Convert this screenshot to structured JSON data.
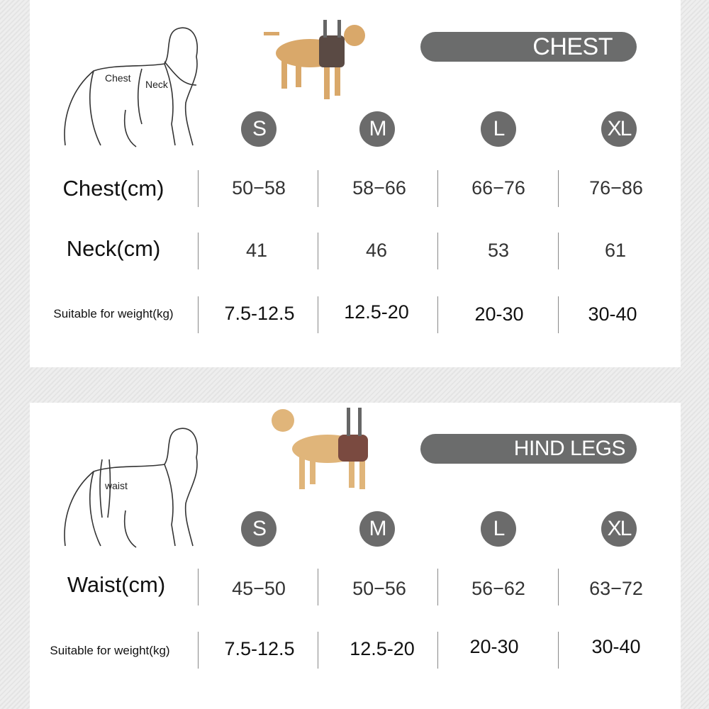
{
  "sizes": [
    "S",
    "M",
    "L",
    "XL"
  ],
  "chest_panel": {
    "title": "CHEST",
    "sketch_labels": {
      "chest": "Chest",
      "neck": "Neck"
    },
    "rows": [
      {
        "label": "Chest(cm)",
        "values": [
          "50−58",
          "58−66",
          "66−76",
          "76−86"
        ]
      },
      {
        "label": "Neck(cm)",
        "values": [
          "41",
          "46",
          "53",
          "61"
        ]
      },
      {
        "label": "Suitable for weight(kg)",
        "values": [
          "7.5-12.5",
          "12.5-20",
          "20-30",
          "30-40"
        ]
      }
    ]
  },
  "hind_panel": {
    "title": "HIND LEGS",
    "sketch_labels": {
      "waist": "waist"
    },
    "rows": [
      {
        "label": "Waist(cm)",
        "values": [
          "45−50",
          "50−56",
          "56−62",
          "63−72"
        ]
      },
      {
        "label": "Suitable for weight(kg)",
        "values": [
          "7.5-12.5",
          "12.5-20",
          "20-30",
          "30-40"
        ]
      }
    ]
  },
  "colors": {
    "badge": "#6b6b6b",
    "panel": "#ffffff",
    "background": "#e9e9e9"
  }
}
